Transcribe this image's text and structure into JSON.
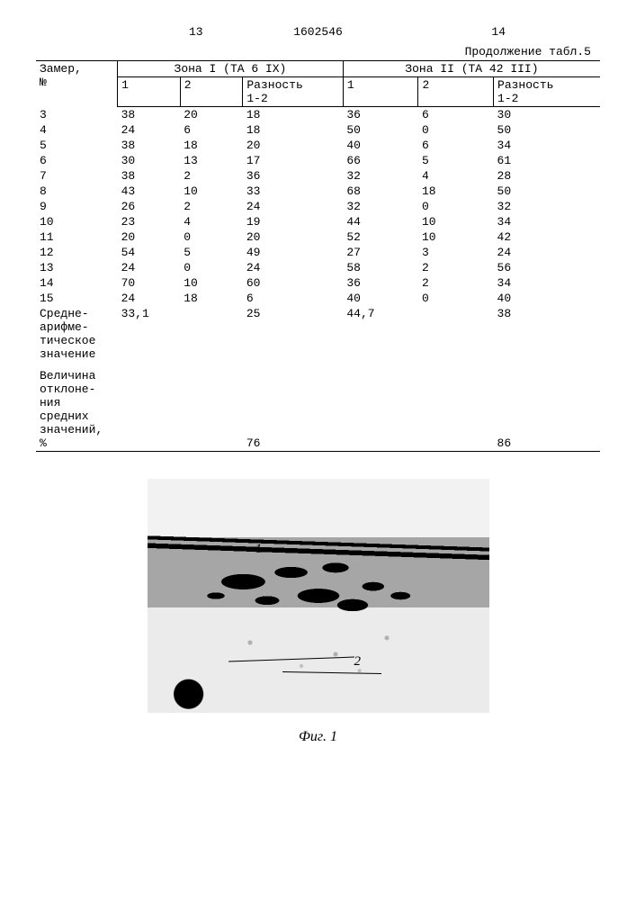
{
  "header": {
    "page_left": "13",
    "doc_number": "1602546",
    "page_right": "14",
    "continuation": "Продолжение табл.5"
  },
  "table": {
    "col_widths_pct": [
      13,
      10,
      10,
      16,
      12,
      12,
      17
    ],
    "head_row1": {
      "measure": "Замер,\n№",
      "zone1": "Зона I (ТА 6 IX)",
      "zone2": "Зона II (ТА 42 III)"
    },
    "head_row2": {
      "c1": "1",
      "c2": "2",
      "c3": "Разность\n1-2",
      "c4": "1",
      "c5": "2",
      "c6": "Разность\n1-2"
    },
    "rows": [
      [
        "3",
        "38",
        "20",
        "18",
        "36",
        "6",
        "30"
      ],
      [
        "4",
        "24",
        "6",
        "18",
        "50",
        "0",
        "50"
      ],
      [
        "5",
        "38",
        "18",
        "20",
        "40",
        "6",
        "34"
      ],
      [
        "6",
        "30",
        "13",
        "17",
        "66",
        "5",
        "61"
      ],
      [
        "7",
        "38",
        "2",
        "36",
        "32",
        "4",
        "28"
      ],
      [
        "8",
        "43",
        "10",
        "33",
        "68",
        "18",
        "50"
      ],
      [
        "9",
        "26",
        "2",
        "24",
        "32",
        "0",
        "32"
      ],
      [
        "10",
        "23",
        "4",
        "19",
        "44",
        "10",
        "34"
      ],
      [
        "11",
        "20",
        "0",
        "20",
        "52",
        "10",
        "42"
      ],
      [
        "12",
        "54",
        "5",
        "49",
        "27",
        "3",
        "24"
      ],
      [
        "13",
        "24",
        "0",
        "24",
        "58",
        "2",
        "56"
      ],
      [
        "14",
        "70",
        "10",
        "60",
        "36",
        "2",
        "34"
      ],
      [
        "15",
        "24",
        "18",
        "6",
        "40",
        "0",
        "40"
      ]
    ],
    "mean_row": {
      "label": "Средне-\nарифме-\nтическое\nзначение",
      "z1_1": "33,1",
      "z1_diff": "25",
      "z2_1": "44,7",
      "z2_diff": "38"
    },
    "deviation_row": {
      "label": "Величина\nотклоне-\nния\nсредних\nзначений,\n%",
      "z1": "76",
      "z2": "86"
    }
  },
  "figure": {
    "caption": "Фиг. 1",
    "label1": "1",
    "label2": "2"
  }
}
